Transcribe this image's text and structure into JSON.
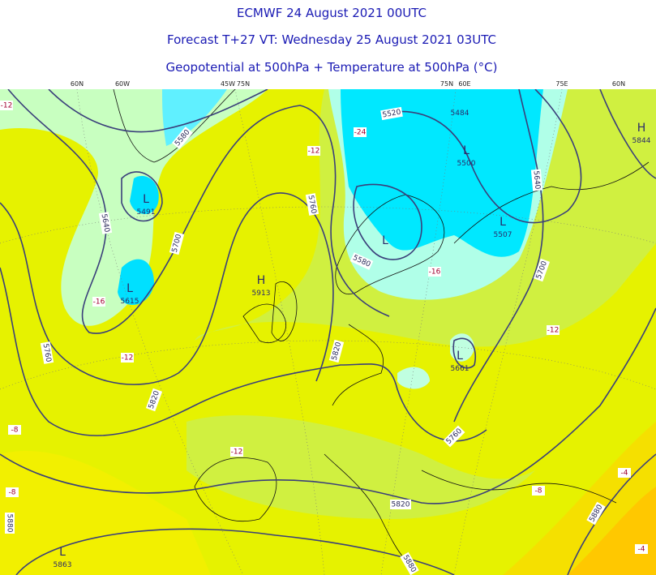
{
  "header": {
    "title": "ECMWF 24 August 2021 00UTC",
    "forecast": "Forecast T+27 VT: Wednesday 25 August 2021 03UTC",
    "fields": "Geopotential at 500hPa + Temperature at 500hPa (°C)"
  },
  "graticule_labels": [
    "60N",
    "60W",
    "45W",
    "75N",
    "75N",
    "60E",
    "75E",
    "60N"
  ],
  "centers": [
    {
      "kind": "L",
      "value": 5491
    },
    {
      "kind": "L",
      "value": 5615
    },
    {
      "kind": "H",
      "value": 5913
    },
    {
      "kind": "L"
    },
    {
      "kind": "L",
      "value": 5500
    },
    {
      "kind": "L",
      "value": 5507
    },
    {
      "kind": "L",
      "value": 5661
    },
    {
      "kind": "H",
      "value": 5844
    },
    {
      "kind": "L",
      "value": 5863
    }
  ],
  "extra_values": [
    5484
  ],
  "contour_labels": [
    5520,
    5580,
    5640,
    5700,
    5760,
    5580,
    5760,
    5820,
    5820,
    5640,
    5700,
    5760,
    5820,
    5880,
    5880,
    5880
  ],
  "temperature_labels": [
    -12,
    -24,
    -12,
    -16,
    -12,
    -16,
    -12,
    -8,
    -12,
    -8,
    -8,
    -4,
    -4
  ]
}
